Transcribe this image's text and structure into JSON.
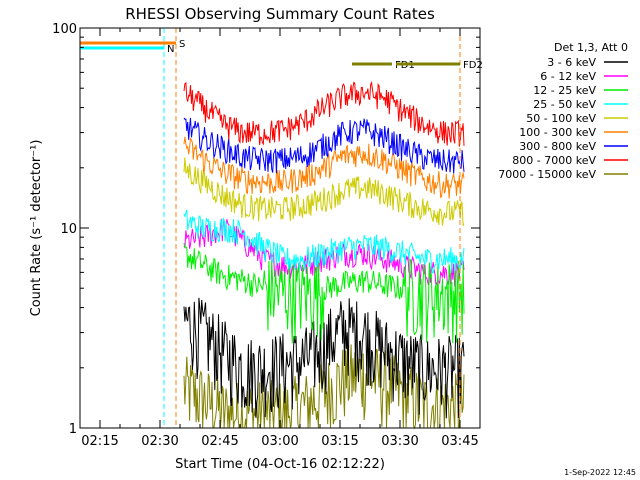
{
  "chart_data": {
    "type": "line",
    "title": "RHESSI Observing Summary Count Rates",
    "xlabel": "Start Time (04-Oct-16 02:12:22)",
    "ylabel": "Count Rate (s⁻¹ detector⁻¹)",
    "yscale": "log",
    "ylim": [
      1,
      100
    ],
    "xlim": [
      "02:10",
      "03:50"
    ],
    "x_ticks": [
      "02:15",
      "02:30",
      "02:45",
      "03:00",
      "03:15",
      "03:30",
      "03:45"
    ],
    "y_ticks": [
      "1",
      "10",
      "100"
    ],
    "grid": false,
    "legend_position": "right",
    "legend_title": "Det 1,3, Att 0",
    "data_start": "02:36",
    "data_end": "03:46",
    "series": [
      {
        "name": "3 - 6 keV",
        "color": "#000000",
        "values": [
          3.5,
          3.0,
          2.4,
          2.0,
          2.0,
          2.1,
          2.2,
          2.6,
          3.2,
          3.0,
          2.5,
          2.2,
          2.0,
          2.0,
          2.0
        ]
      },
      {
        "name": "6 - 12 keV",
        "color": "#ff00ff",
        "values": [
          8.5,
          9.0,
          10.0,
          8.5,
          7.0,
          6.5,
          6.5,
          7.0,
          7.5,
          7.5,
          7.0,
          6.5,
          6.0,
          6.0,
          6.0
        ]
      },
      {
        "name": "12 - 25 keV",
        "color": "#00ee00",
        "values": [
          7.5,
          6.5,
          5.8,
          5.5,
          5.0,
          4.8,
          4.8,
          5.0,
          5.3,
          5.5,
          5.2,
          5.0,
          4.8,
          4.8,
          4.8
        ]
      },
      {
        "name": "25 - 50 keV",
        "color": "#00ffff",
        "values": [
          11.0,
          10.0,
          10.0,
          9.5,
          8.0,
          7.0,
          7.0,
          7.5,
          8.0,
          8.2,
          8.0,
          7.5,
          7.0,
          7.0,
          7.0
        ]
      },
      {
        "name": "50 - 100 keV",
        "color": "#cccc00",
        "values": [
          20.0,
          17.0,
          14.5,
          13.0,
          12.5,
          12.5,
          13.0,
          14.0,
          15.5,
          16.0,
          15.0,
          13.5,
          12.5,
          12.0,
          12.0
        ]
      },
      {
        "name": "100 - 300 keV",
        "color": "#ff8000",
        "values": [
          26.0,
          22.0,
          19.0,
          17.5,
          17.0,
          17.0,
          18.0,
          20.0,
          23.0,
          24.0,
          22.0,
          19.5,
          17.5,
          16.5,
          16.5
        ]
      },
      {
        "name": "300 - 800 keV",
        "color": "#0000ff",
        "values": [
          33.0,
          28.0,
          25.0,
          22.5,
          22.0,
          22.0,
          23.0,
          26.0,
          30.0,
          31.0,
          28.5,
          25.0,
          22.5,
          21.5,
          21.5
        ]
      },
      {
        "name": "800 - 7000 keV",
        "color": "#ff0000",
        "values": [
          48.0,
          40.0,
          33.0,
          30.0,
          30.0,
          31.0,
          34.0,
          40.0,
          46.0,
          48.0,
          45.0,
          38.0,
          33.0,
          30.0,
          30.0
        ]
      },
      {
        "name": "7000 - 15000 keV",
        "color": "#808000",
        "values": [
          1.6,
          1.4,
          1.2,
          1.2,
          1.2,
          1.2,
          1.3,
          1.5,
          1.8,
          1.9,
          1.7,
          1.5,
          1.3,
          1.3,
          1.3
        ]
      }
    ],
    "annotations": {
      "flags": [
        {
          "label": "S",
          "start": "02:10",
          "end": "02:34",
          "color": "#ff8000"
        },
        {
          "label": "N",
          "start": "02:10",
          "end": "02:31",
          "color": "#00ffff"
        },
        {
          "label": "FD1",
          "start": "03:18",
          "end": "03:28",
          "color": "#808000"
        },
        {
          "label": "FD2",
          "start": "03:29",
          "end": "03:45",
          "color": "#808000"
        }
      ],
      "eclipse_lines": [
        {
          "time": "02:31",
          "color": "#00ffff",
          "style": "dashed"
        },
        {
          "time": "02:34",
          "color": "#ff8000",
          "style": "dashed"
        },
        {
          "time": "03:45",
          "color": "#ff8000",
          "style": "dashed"
        }
      ]
    },
    "footer": "1-Sep-2022 12:45"
  }
}
